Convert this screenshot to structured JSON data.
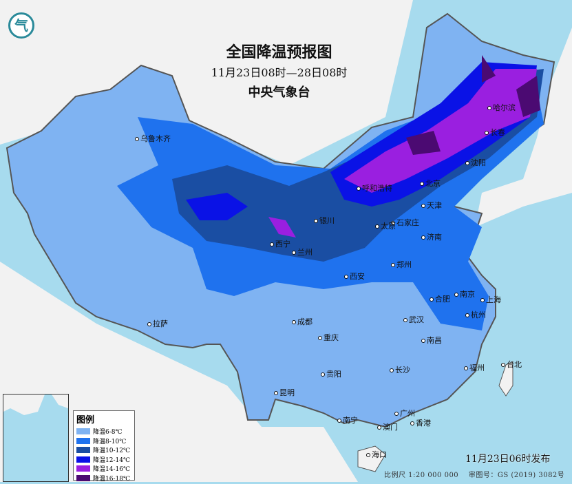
{
  "title": "全国降温预报图",
  "period": "11月23日08时—28日08时",
  "issuer": "中央气象台",
  "issued": "11月23日06时发布",
  "scale": "比例尺 1:20 000 000",
  "map_number": "审图号：GS (2019) 3082号",
  "logo": "气",
  "legend": {
    "title": "图例",
    "items": [
      {
        "label": "降温6-8℃",
        "color": "#7fb3f2"
      },
      {
        "label": "降温8-10℃",
        "color": "#1f72ee"
      },
      {
        "label": "降温10-12℃",
        "color": "#1a4ea3"
      },
      {
        "label": "降温12-14℃",
        "color": "#0a12e6"
      },
      {
        "label": "降温14-16℃",
        "color": "#9a1fe0"
      },
      {
        "label": "降温16-18℃",
        "color": "#4b0a72"
      }
    ]
  },
  "cities": [
    "乌鲁木齐",
    "拉萨",
    "西宁",
    "兰州",
    "银川",
    "呼和浩特",
    "北京",
    "天津",
    "石家庄",
    "太原",
    "济南",
    "郑州",
    "西安",
    "成都",
    "重庆",
    "贵阳",
    "昆明",
    "南宁",
    "广州",
    "香港",
    "澳门",
    "海口",
    "长沙",
    "武汉",
    "南昌",
    "合肥",
    "南京",
    "上海",
    "杭州",
    "福州",
    "台北",
    "哈尔滨",
    "长春",
    "沈阳"
  ]
}
